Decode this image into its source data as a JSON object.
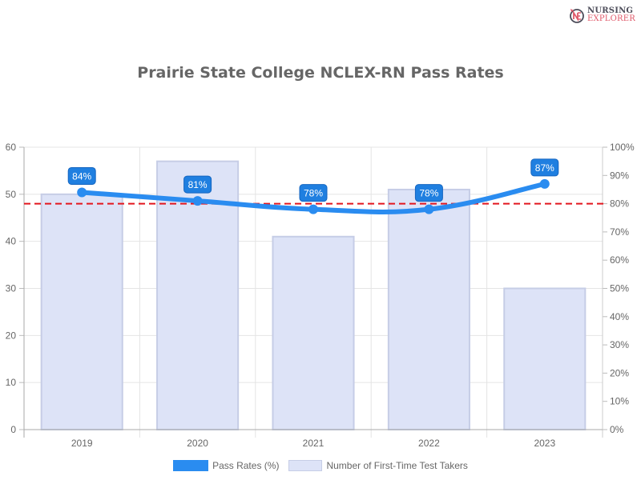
{
  "header": {
    "title": "Prairie State College NCLEX-RN Pass Rates",
    "logo": {
      "line1": "NURSING",
      "line2": "EXPLORER",
      "icon": "nursing-explorer-logo-icon"
    }
  },
  "legend": {
    "items": [
      {
        "label": "Pass Rates (%)",
        "color": "#2a8cf0"
      },
      {
        "label": "Number of First-Time Test Takers",
        "color": "#dde3f7"
      }
    ]
  },
  "colors": {
    "line": "#2a8cf0",
    "label_bg": "#1f7fe0",
    "bar_fill": "#dde3f7",
    "bar_border": "#c6cde6",
    "reference_line": "#e3161e",
    "grid": "#e4e4e4",
    "text": "#666666"
  },
  "chart_data": {
    "type": "bar",
    "title": "Prairie State College NCLEX-RN Pass Rates",
    "categories": [
      "2019",
      "2020",
      "2021",
      "2022",
      "2023"
    ],
    "series": [
      {
        "name": "Number of First-Time Test Takers",
        "type": "bar",
        "axis": "left",
        "values": [
          50,
          57,
          41,
          51,
          30
        ]
      },
      {
        "name": "Pass Rates (%)",
        "type": "line",
        "axis": "right",
        "values": [
          84,
          81,
          78,
          78,
          87
        ],
        "data_labels": [
          "84%",
          "81%",
          "78%",
          "78%",
          "87%"
        ]
      }
    ],
    "reference_line": {
      "axis": "right",
      "value": 80,
      "style": "dashed",
      "color": "#e3161e"
    },
    "y_left": {
      "ticks": [
        "0",
        "10",
        "20",
        "30",
        "40",
        "50",
        "60"
      ],
      "range": [
        0,
        60
      ]
    },
    "y_right": {
      "ticks": [
        "0%",
        "10%",
        "20%",
        "30%",
        "40%",
        "50%",
        "60%",
        "70%",
        "80%",
        "90%",
        "100%"
      ],
      "range": [
        0,
        100
      ]
    },
    "xlabel": "",
    "ylabel": "",
    "grid": true,
    "legend_position": "bottom"
  }
}
